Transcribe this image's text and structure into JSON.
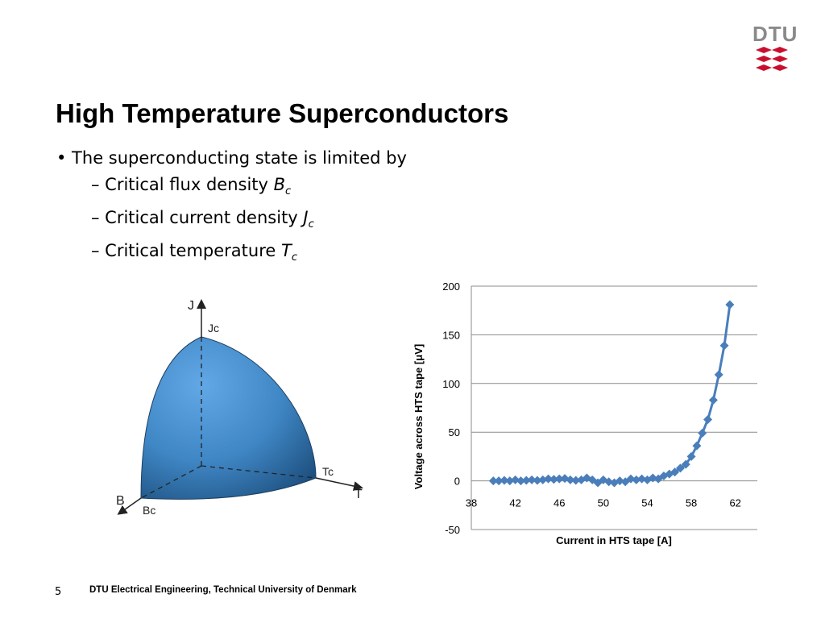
{
  "header": {
    "logo_text": "DTU",
    "logo_color": "#c8102e"
  },
  "slide": {
    "title": "High Temperature Superconductors",
    "bullet": "• The superconducting state is limited by",
    "sub_items": [
      {
        "prefix": "– Critical flux density ",
        "symbol": "B",
        "subscript": "c"
      },
      {
        "prefix": "– Critical current density ",
        "symbol": "J",
        "subscript": "c"
      },
      {
        "prefix": "– Critical temperature ",
        "symbol": "T",
        "subscript": "c"
      }
    ]
  },
  "diagram": {
    "axis_j": "J",
    "axis_t": "T",
    "axis_b": "B",
    "label_jc": "Jc",
    "label_tc": "Tc",
    "label_bc": "Bc",
    "fill_color": "#3f86c4"
  },
  "chart_data": {
    "type": "line",
    "xlabel": "Current in HTS tape [A]",
    "ylabel": "Voltage across HTS tape [μV]",
    "xlim": [
      38,
      64
    ],
    "ylim": [
      -50,
      200
    ],
    "x_ticks": [
      38,
      42,
      46,
      50,
      54,
      58,
      62
    ],
    "y_ticks": [
      200,
      150,
      100,
      50,
      0,
      -50
    ],
    "grid": true,
    "marker": "diamond",
    "color": "#4a7ebb",
    "series": [
      {
        "x": [
          40,
          40.5,
          41,
          41.5,
          42,
          42.5,
          43,
          43.5,
          44,
          44.5,
          45,
          45.5,
          46,
          46.5,
          47,
          47.5,
          48,
          48.5,
          49,
          49.5,
          50,
          50.5,
          51,
          51.5,
          52,
          52.5,
          53,
          53.5,
          54,
          54.5,
          55,
          55.5,
          56,
          56.5,
          57,
          57.5,
          58,
          58.5,
          59,
          59.5,
          60,
          60.5,
          61,
          61.5
        ],
        "y": [
          0,
          0,
          0.5,
          0,
          1,
          0,
          0.5,
          1,
          0.5,
          1,
          2,
          1.5,
          2,
          2.5,
          1,
          0.5,
          1,
          3,
          1,
          -2,
          1,
          -1,
          -2,
          0,
          -1,
          2,
          1,
          2,
          1,
          3,
          2,
          5,
          7,
          9,
          13,
          17,
          25,
          36,
          49,
          63,
          83,
          109,
          139,
          181
        ]
      }
    ]
  },
  "footer": {
    "page_number": "5",
    "text": "DTU Electrical Engineering, Technical University of Denmark"
  }
}
